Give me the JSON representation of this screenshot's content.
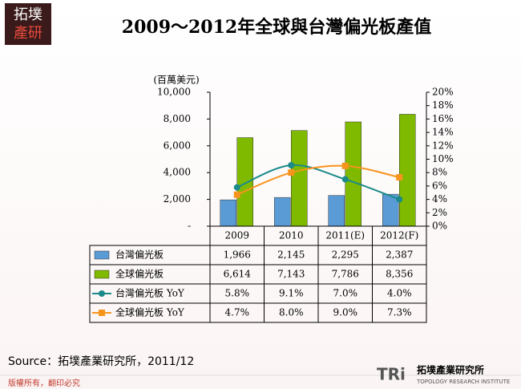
{
  "logo": [
    "拓墣",
    "產研"
  ],
  "source": "Source：拓墣產業研究所，2011/12",
  "footer": "版權所有，翻印必究",
  "tri_logo": [
    "TRi",
    "拓墣產業研究所",
    "TOPOLOGY RESEARCH INSTITUTE"
  ],
  "chart_data": {
    "type": "bar",
    "title": "2009～2012年全球與台灣偏光板產值",
    "y_label": "(百萬美元)",
    "categories": [
      "2009",
      "2010",
      "2011(E)",
      "2012(F)"
    ],
    "ylim": [
      0,
      10000
    ],
    "yticks": [
      {
        "value": 0,
        "label": "-"
      },
      {
        "value": 2000,
        "label": "2,000"
      },
      {
        "value": 4000,
        "label": "4,000"
      },
      {
        "value": 6000,
        "label": "6,000"
      },
      {
        "value": 8000,
        "label": "8,000"
      },
      {
        "value": 10000,
        "label": "10,000"
      }
    ],
    "y2lim": [
      0,
      20
    ],
    "y2ticks": [
      {
        "value": 0,
        "label": "0%"
      },
      {
        "value": 2,
        "label": "2%"
      },
      {
        "value": 4,
        "label": "4%"
      },
      {
        "value": 6,
        "label": "6%"
      },
      {
        "value": 8,
        "label": "8%"
      },
      {
        "value": 10,
        "label": "10%"
      },
      {
        "value": 12,
        "label": "12%"
      },
      {
        "value": 14,
        "label": "14%"
      },
      {
        "value": 16,
        "label": "16%"
      },
      {
        "value": 18,
        "label": "18%"
      },
      {
        "value": 20,
        "label": "20%"
      }
    ],
    "series": [
      {
        "name": "台灣偏光板",
        "type": "bar",
        "color": "#5b9bd5",
        "values": [
          1966,
          2145,
          2295,
          2387
        ],
        "value_labels": [
          "1,966",
          "2,145",
          "2,295",
          "2,387"
        ]
      },
      {
        "name": "全球偏光板",
        "type": "bar",
        "color": "#7fba00",
        "values": [
          6614,
          7143,
          7786,
          8356
        ],
        "value_labels": [
          "6,614",
          "7,143",
          "7,786",
          "8,356"
        ]
      },
      {
        "name": "台灣偏光板 YoY",
        "type": "line",
        "axis": "y2",
        "marker": "circle",
        "color": "#1a8a8a",
        "values": [
          5.8,
          9.1,
          7.0,
          4.0
        ],
        "value_labels": [
          "5.8%",
          "9.1%",
          "7.0%",
          "4.0%"
        ]
      },
      {
        "name": "全球偏光板 YoY",
        "type": "line",
        "axis": "y2",
        "marker": "square",
        "color": "#f7941d",
        "values": [
          4.7,
          8.0,
          9.0,
          7.3
        ],
        "value_labels": [
          "4.7%",
          "8.0%",
          "9.0%",
          "7.3%"
        ]
      }
    ]
  }
}
